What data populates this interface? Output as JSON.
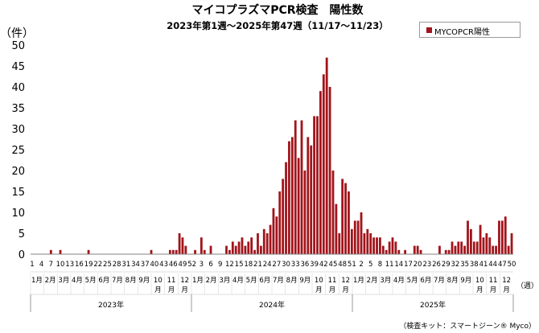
{
  "chart_data": {
    "type": "bar",
    "title": "マイコプラズマPCR検査　陽性数",
    "subtitle": "2023年第1週～2025年第47週（11/17～11/23）",
    "ylabel": "（件）",
    "xlabel": "（週）",
    "ylim": [
      0,
      50
    ],
    "yticks": [
      0,
      5,
      10,
      15,
      20,
      25,
      30,
      35,
      40,
      45,
      50
    ],
    "grid": false,
    "legend_position": "top-right",
    "footnote": "（検査キット：スマートジーン® Myco）",
    "colors": {
      "bar": "#a2141b"
    },
    "week_tick_labels": [
      "1",
      "4",
      "7",
      "10",
      "13",
      "16",
      "19",
      "22",
      "25",
      "28",
      "31",
      "34",
      "37",
      "40",
      "43",
      "46",
      "49",
      "52",
      "3",
      "6",
      "9",
      "12",
      "15",
      "18",
      "21",
      "24",
      "27",
      "30",
      "33",
      "36",
      "39",
      "42",
      "45",
      "48",
      "51",
      "2",
      "5",
      "8",
      "11",
      "14",
      "17",
      "20",
      "23",
      "26",
      "29",
      "32",
      "35",
      "38",
      "41",
      "44",
      "47",
      "50"
    ],
    "month_labels": [
      "1月",
      "2月",
      "3月",
      "4月",
      "5月",
      "6月",
      "7月",
      "8月",
      "9月",
      "10月",
      "11月",
      "12月",
      "1月",
      "2月",
      "3月",
      "4月",
      "5月",
      "6月",
      "7月",
      "8月",
      "9月",
      "10月",
      "11月",
      "12月",
      "1月",
      "2月",
      "3月",
      "4月",
      "5月",
      "6月",
      "7月",
      "8月",
      "9月",
      "10月",
      "11月",
      "12月"
    ],
    "year_labels": [
      "2023年",
      "2024年",
      "2025年"
    ],
    "series": [
      {
        "name": "MYCOPCR陽性",
        "values": [
          0,
          0,
          0,
          0,
          0,
          0,
          1,
          0,
          0,
          1,
          0,
          0,
          0,
          0,
          0,
          0,
          0,
          0,
          1,
          0,
          0,
          0,
          0,
          0,
          0,
          0,
          0,
          0,
          0,
          0,
          0,
          0,
          0,
          0,
          0,
          0,
          0,
          0,
          1,
          0,
          0,
          0,
          0,
          0,
          1,
          1,
          1,
          5,
          4,
          2,
          0,
          0,
          1,
          0,
          4,
          1,
          0,
          2,
          0,
          0,
          0,
          0,
          2,
          1,
          3,
          2,
          3,
          4,
          2,
          3,
          4,
          1,
          5,
          2,
          6,
          5,
          7,
          11,
          9,
          15,
          18,
          22,
          27,
          28,
          32,
          23,
          32,
          20,
          28,
          26,
          33,
          33,
          39,
          43,
          47,
          40,
          20,
          12,
          5,
          18,
          17,
          15,
          6,
          8,
          8,
          10,
          5,
          6,
          5,
          4,
          4,
          4,
          2,
          1,
          3,
          4,
          3,
          1,
          0,
          1,
          0,
          0,
          2,
          2,
          1,
          0,
          0,
          0,
          0,
          0,
          2,
          0,
          1,
          1,
          3,
          2,
          3,
          3,
          2,
          8,
          6,
          3,
          3,
          7,
          4,
          5,
          4,
          2,
          2,
          8,
          8,
          9,
          2,
          5
        ]
      }
    ]
  }
}
